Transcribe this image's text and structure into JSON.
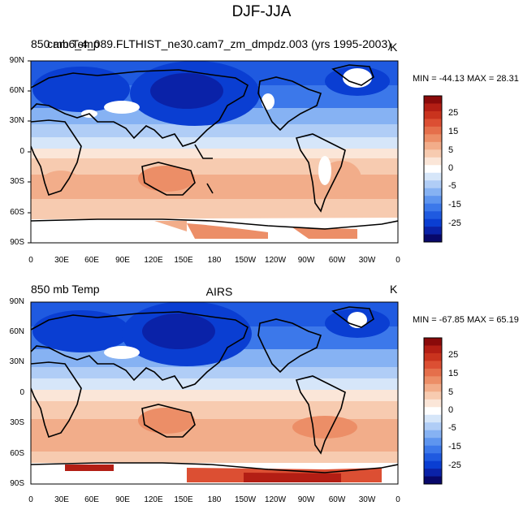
{
  "title": "DJF-JJA",
  "lat_ticks": [
    "90N",
    "60N",
    "30N",
    "0",
    "30S",
    "60S",
    "90S"
  ],
  "lon_ticks": [
    "0",
    "30E",
    "60E",
    "90E",
    "120E",
    "150E",
    "180",
    "150W",
    "120W",
    "90W",
    "60W",
    "30W",
    "0"
  ],
  "colorbar_ticks": [
    "25",
    "15",
    "5",
    "0",
    "-5",
    "-15",
    "-25"
  ],
  "colorbar_colors": [
    "#08086a",
    "#0a22a8",
    "#0a3ed2",
    "#1f5ae0",
    "#3c78ea",
    "#5e95ef",
    "#86b2f3",
    "#b0cdf6",
    "#d6e6f9",
    "#ffffff",
    "#fbe6d8",
    "#f7cbb0",
    "#f2ad8a",
    "#ec8e67",
    "#e56f4b",
    "#dc4f33",
    "#c9331e",
    "#b31e14",
    "#8a0a0a"
  ],
  "panels": [
    {
      "left_label": "850 mb Temp",
      "center_label": "cam6_4_089.FLTHIST_ne30.cam7_zm_dmpdz.003 (yrs 1995-2003)",
      "units": "K",
      "stats": "MIN = -44.13 MAX =  28.31"
    },
    {
      "left_label": "850 mb Temp",
      "center_label": "AIRS",
      "units": "K",
      "stats": "MIN = -67.85 MAX =  65.19"
    }
  ]
}
